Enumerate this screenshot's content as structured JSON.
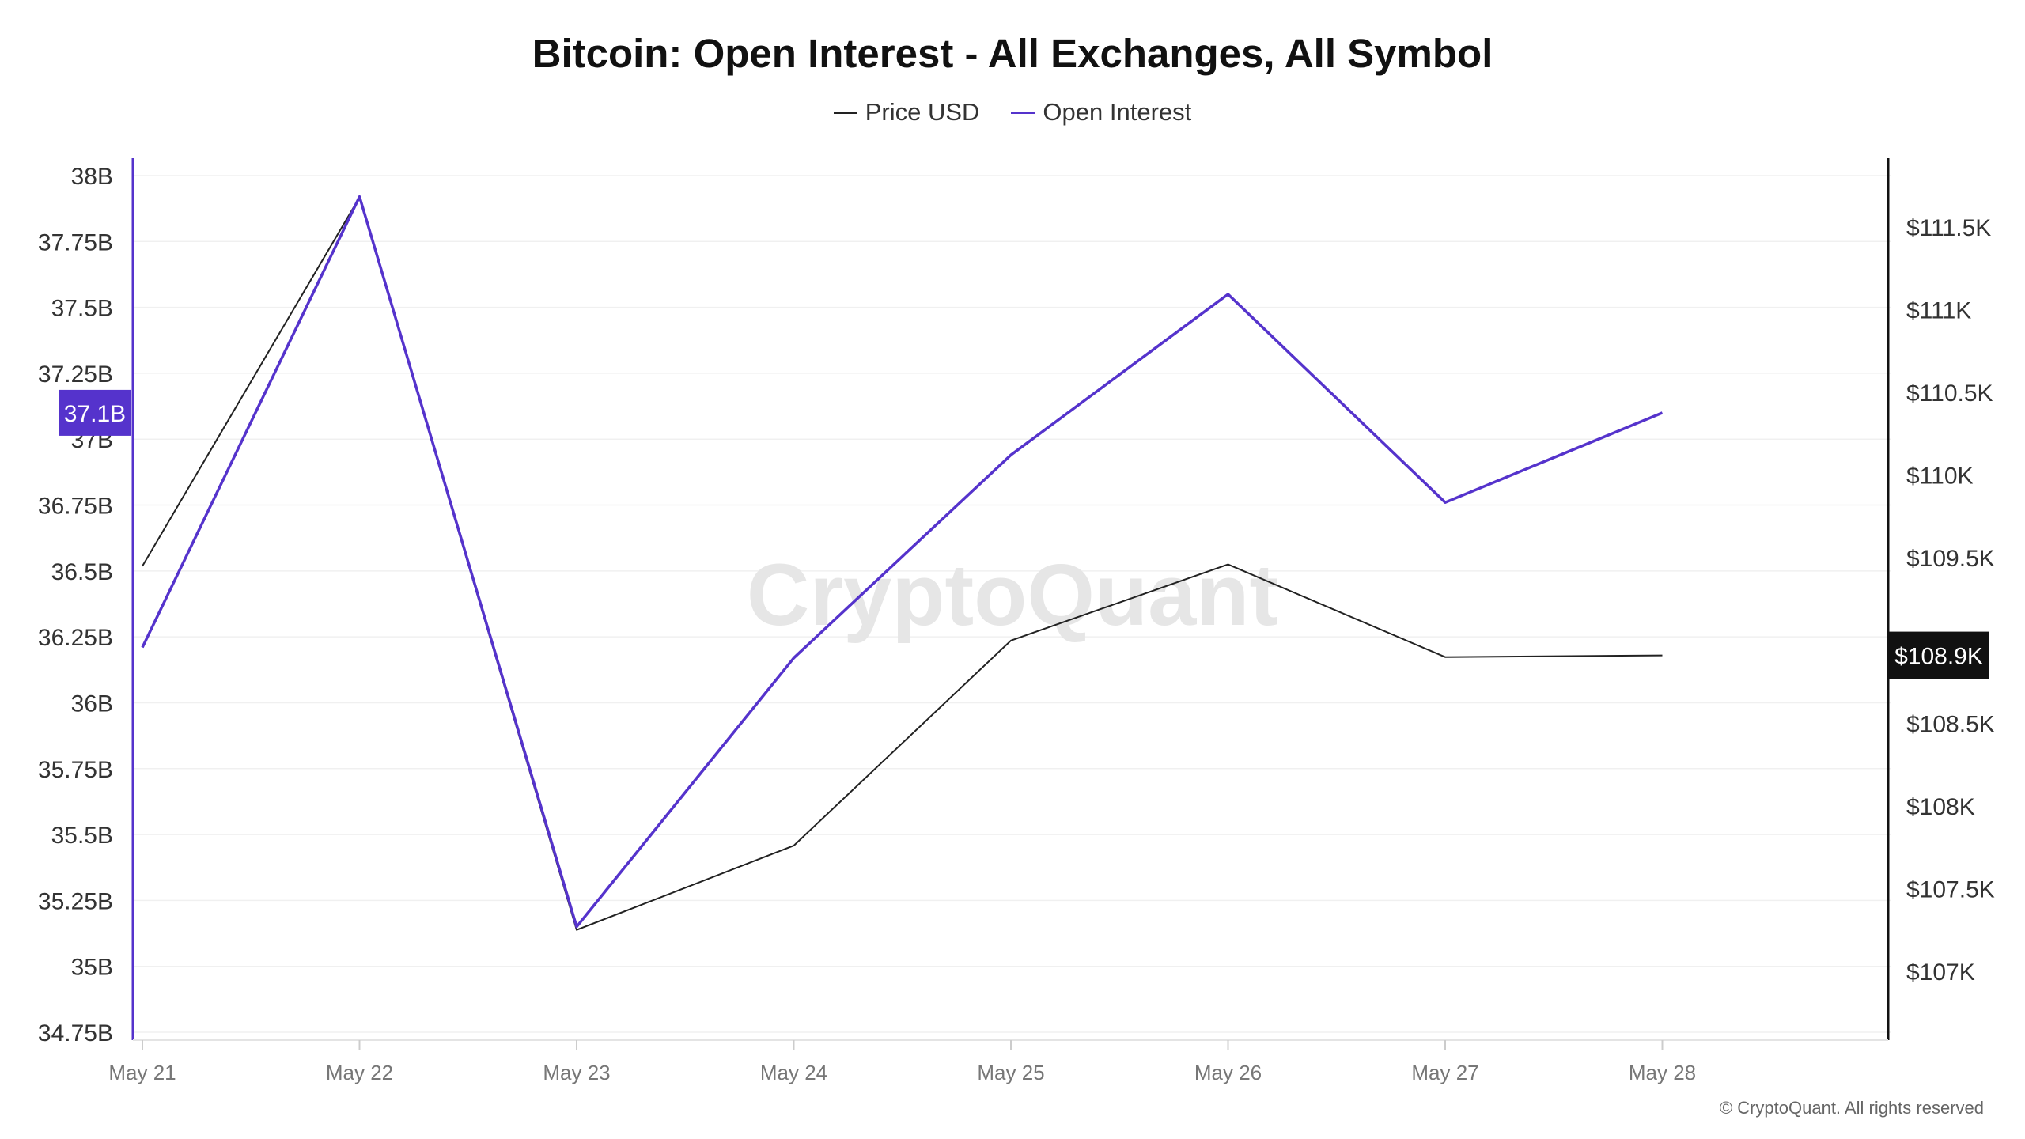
{
  "chart_data": {
    "type": "line",
    "title": "Bitcoin: Open Interest - All Exchanges, All Symbol",
    "categories": [
      "May 21",
      "May 22",
      "May 23",
      "May 24",
      "May 25",
      "May 26",
      "May 27",
      "May 28"
    ],
    "series": [
      {
        "name": "Price USD",
        "axis": "right",
        "color": "#222222",
        "values": [
          109450,
          111680,
          107250,
          107760,
          109000,
          109460,
          108900,
          108910
        ]
      },
      {
        "name": "Open Interest",
        "axis": "left",
        "color": "#5533cc",
        "values": [
          36.21,
          37.92,
          35.15,
          36.17,
          36.94,
          37.55,
          36.76,
          37.1
        ]
      }
    ],
    "y_left": {
      "ticks": [
        "34.75B",
        "35B",
        "35.25B",
        "35.5B",
        "35.75B",
        "36B",
        "36.25B",
        "36.5B",
        "36.75B",
        "37B",
        "37.25B",
        "37.5B",
        "37.75B",
        "38B"
      ],
      "tick_values": [
        34.75,
        35,
        35.25,
        35.5,
        35.75,
        36,
        36.25,
        36.5,
        36.75,
        37,
        37.25,
        37.5,
        37.75,
        38
      ],
      "ylim": [
        34.75,
        38
      ],
      "current_label": "37.1B",
      "current_value": 37.1,
      "color": "#5533cc"
    },
    "y_right": {
      "ticks": [
        "$107K",
        "$107.5K",
        "$108K",
        "$108.5K",
        "$109K",
        "$109.5K",
        "$110K",
        "$110.5K",
        "$111K",
        "$111.5K"
      ],
      "tick_values": [
        107000,
        107500,
        108000,
        108500,
        109000,
        109500,
        110000,
        110500,
        111000,
        111500
      ],
      "current_label": "$108.9K",
      "current_value": 108910,
      "color": "#111111"
    },
    "grid": true,
    "legend": "top-center"
  },
  "watermark": "CryptoQuant",
  "copyright": "© CryptoQuant. All rights reserved"
}
